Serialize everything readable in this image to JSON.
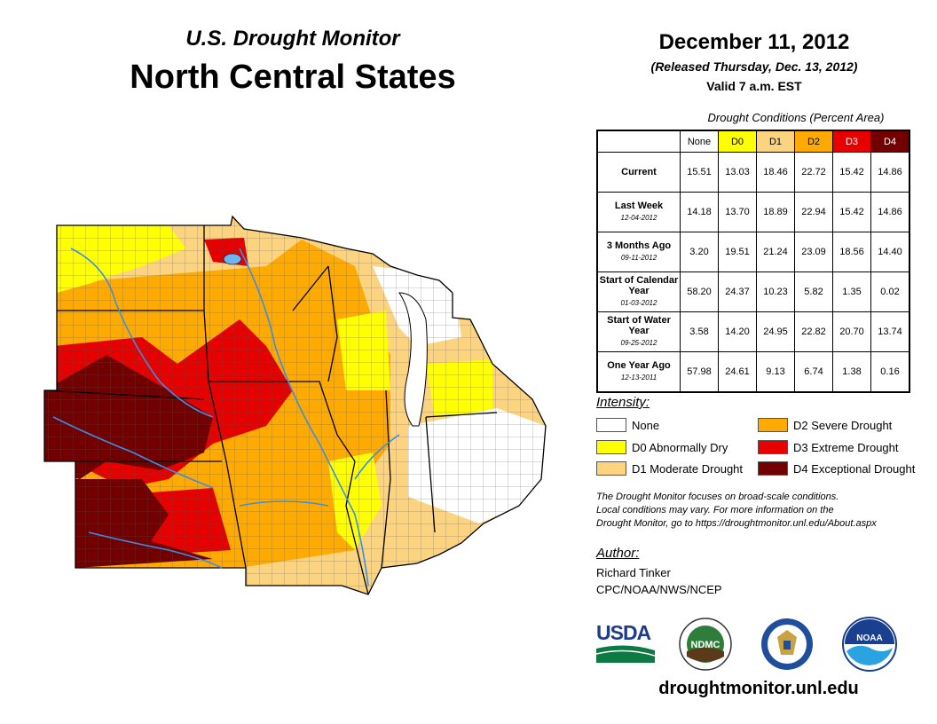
{
  "header": {
    "subtitle": "U.S. Drought Monitor",
    "title": "North Central States"
  },
  "info": {
    "date": "December 11, 2012",
    "released": "(Released Thursday, Dec. 13, 2012)",
    "valid": "Valid 7 a.m. EST"
  },
  "table": {
    "caption": "Drought Conditions (Percent Area)",
    "columns": [
      "None",
      "D0",
      "D1",
      "D2",
      "D3",
      "D4"
    ],
    "column_colors": [
      "#ffffff",
      "#ffff00",
      "#fcd37f",
      "#ffaa00",
      "#e60000",
      "#730000"
    ],
    "rows": [
      {
        "label": "Current",
        "sub": "",
        "values": [
          "15.51",
          "13.03",
          "18.46",
          "22.72",
          "15.42",
          "14.86"
        ]
      },
      {
        "label": "Last Week",
        "sub": "12-04-2012",
        "values": [
          "14.18",
          "13.70",
          "18.89",
          "22.94",
          "15.42",
          "14.86"
        ]
      },
      {
        "label": "3 Months Ago",
        "sub": "09-11-2012",
        "values": [
          "3.20",
          "19.51",
          "21.24",
          "23.09",
          "18.56",
          "14.40"
        ]
      },
      {
        "label": "Start of Calendar Year",
        "sub": "01-03-2012",
        "values": [
          "58.20",
          "24.37",
          "10.23",
          "5.82",
          "1.35",
          "0.02"
        ]
      },
      {
        "label": "Start of Water Year",
        "sub": "09-25-2012",
        "values": [
          "3.58",
          "14.20",
          "24.95",
          "22.82",
          "20.70",
          "13.74"
        ]
      },
      {
        "label": "One Year Ago",
        "sub": "12-13-2011",
        "values": [
          "57.98",
          "24.61",
          "9.13",
          "6.74",
          "1.38",
          "0.16"
        ]
      }
    ]
  },
  "legend": {
    "title": "Intensity:",
    "items": [
      {
        "label": "None",
        "color": "#ffffff"
      },
      {
        "label": "D0 Abnormally Dry",
        "color": "#ffff00"
      },
      {
        "label": "D1 Moderate Drought",
        "color": "#fcd37f"
      },
      {
        "label": "D2 Severe Drought",
        "color": "#ffaa00"
      },
      {
        "label": "D3 Extreme Drought",
        "color": "#e60000"
      },
      {
        "label": "D4 Exceptional Drought",
        "color": "#730000"
      }
    ]
  },
  "note": {
    "line1": "The Drought Monitor focuses on broad-scale conditions.",
    "line2": "Local conditions may vary. For more information on the",
    "line3": "Drought Monitor, go to https://droughtmonitor.unl.edu/About.aspx"
  },
  "author": {
    "title": "Author:",
    "name": "Richard Tinker",
    "org": "CPC/NOAA/NWS/NCEP"
  },
  "logos": {
    "usda": "USDA",
    "ndmc": "NDMC",
    "noaa": "NOAA"
  },
  "footer": {
    "url": "droughtmonitor.unl.edu"
  }
}
